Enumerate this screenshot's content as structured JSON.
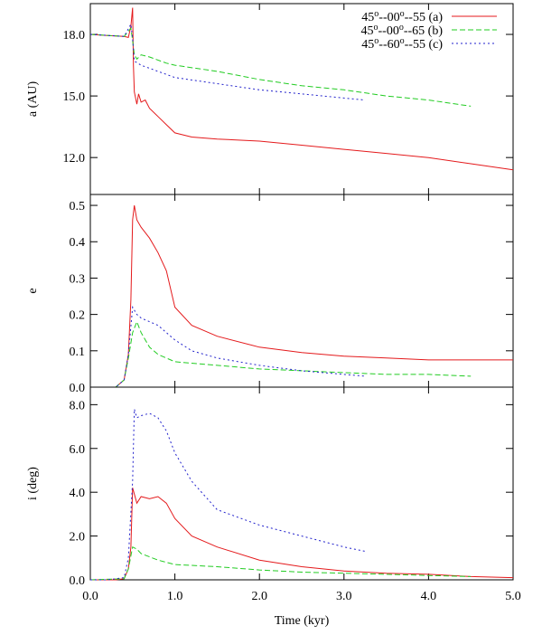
{
  "chart_data": {
    "type": "line",
    "xlabel": "Time (kyr)",
    "xlim": [
      0,
      5
    ],
    "xticks": [
      "0.0",
      "1.0",
      "2.0",
      "3.0",
      "4.0",
      "5.0"
    ],
    "legend_placement": "top-right",
    "series_styles": [
      {
        "key": "a",
        "name": "45°--00°--55 (a)",
        "color": "#e41a1c",
        "dash": "solid"
      },
      {
        "key": "b",
        "name": "45°--00°--65 (b)",
        "color": "#22cc22",
        "dash": "dashed"
      },
      {
        "key": "c",
        "name": "45°--60°--55 (c)",
        "color": "#2222cc",
        "dash": "dotted"
      }
    ],
    "legend": [
      {
        "pre": "45",
        "sup1": "o",
        "mid": "--00",
        "sup2": "o",
        "post": "--55 (a)"
      },
      {
        "pre": "45",
        "sup1": "o",
        "mid": "--00",
        "sup2": "o",
        "post": "--65 (b)"
      },
      {
        "pre": "45",
        "sup1": "o",
        "mid": "--60",
        "sup2": "o",
        "post": "--55 (c)"
      }
    ],
    "panels": [
      {
        "ylabel": "a (AU)",
        "ylim": [
          10.2,
          19.5
        ],
        "yticks": [
          12.0,
          15.0,
          18.0
        ],
        "ytick_labels": [
          "12.0",
          "15.0",
          "18.0"
        ],
        "series": {
          "a": [
            [
              0,
              18.0
            ],
            [
              0.2,
              17.95
            ],
            [
              0.4,
              17.9
            ],
            [
              0.45,
              17.85
            ],
            [
              0.48,
              18.4
            ],
            [
              0.5,
              19.3
            ],
            [
              0.51,
              16.5
            ],
            [
              0.52,
              15.2
            ],
            [
              0.55,
              14.6
            ],
            [
              0.57,
              15.1
            ],
            [
              0.6,
              14.7
            ],
            [
              0.65,
              14.8
            ],
            [
              0.7,
              14.4
            ],
            [
              0.8,
              14.0
            ],
            [
              0.9,
              13.6
            ],
            [
              1.0,
              13.2
            ],
            [
              1.2,
              13.0
            ],
            [
              1.5,
              12.9
            ],
            [
              2.0,
              12.8
            ],
            [
              2.5,
              12.6
            ],
            [
              3.0,
              12.4
            ],
            [
              3.5,
              12.2
            ],
            [
              4.0,
              12.0
            ],
            [
              4.5,
              11.7
            ],
            [
              5.0,
              11.4
            ]
          ],
          "b": [
            [
              0,
              18.0
            ],
            [
              0.4,
              17.9
            ],
            [
              0.48,
              18.3
            ],
            [
              0.5,
              17.7
            ],
            [
              0.52,
              17.0
            ],
            [
              0.55,
              16.8
            ],
            [
              0.6,
              17.0
            ],
            [
              0.7,
              16.9
            ],
            [
              0.9,
              16.6
            ],
            [
              1.0,
              16.5
            ],
            [
              1.5,
              16.2
            ],
            [
              2.0,
              15.8
            ],
            [
              2.5,
              15.5
            ],
            [
              3.0,
              15.3
            ],
            [
              3.5,
              15.0
            ],
            [
              4.0,
              14.8
            ],
            [
              4.5,
              14.5
            ]
          ],
          "c": [
            [
              0,
              18.0
            ],
            [
              0.4,
              17.9
            ],
            [
              0.48,
              18.5
            ],
            [
              0.5,
              17.8
            ],
            [
              0.52,
              16.7
            ],
            [
              0.6,
              16.5
            ],
            [
              0.8,
              16.2
            ],
            [
              1.0,
              15.9
            ],
            [
              1.5,
              15.6
            ],
            [
              2.0,
              15.3
            ],
            [
              2.5,
              15.1
            ],
            [
              3.0,
              14.9
            ],
            [
              3.25,
              14.8
            ]
          ]
        }
      },
      {
        "ylabel": "e",
        "ylim": [
          0,
          0.53
        ],
        "yticks": [
          0.0,
          0.1,
          0.2,
          0.3,
          0.4,
          0.5
        ],
        "ytick_labels": [
          "0.0",
          "0.1",
          "0.2",
          "0.3",
          "0.4",
          "0.5"
        ],
        "series": {
          "a": [
            [
              0,
              0.0
            ],
            [
              0.3,
              0.0
            ],
            [
              0.4,
              0.02
            ],
            [
              0.45,
              0.09
            ],
            [
              0.48,
              0.24
            ],
            [
              0.5,
              0.46
            ],
            [
              0.52,
              0.5
            ],
            [
              0.55,
              0.46
            ],
            [
              0.6,
              0.44
            ],
            [
              0.7,
              0.41
            ],
            [
              0.8,
              0.37
            ],
            [
              0.9,
              0.32
            ],
            [
              1.0,
              0.22
            ],
            [
              1.2,
              0.17
            ],
            [
              1.5,
              0.14
            ],
            [
              2.0,
              0.11
            ],
            [
              2.5,
              0.095
            ],
            [
              3.0,
              0.085
            ],
            [
              3.5,
              0.08
            ],
            [
              4.0,
              0.075
            ],
            [
              5.0,
              0.075
            ]
          ],
          "b": [
            [
              0,
              0.0
            ],
            [
              0.3,
              0.0
            ],
            [
              0.4,
              0.02
            ],
            [
              0.45,
              0.08
            ],
            [
              0.5,
              0.15
            ],
            [
              0.55,
              0.18
            ],
            [
              0.6,
              0.15
            ],
            [
              0.7,
              0.11
            ],
            [
              0.8,
              0.09
            ],
            [
              1.0,
              0.07
            ],
            [
              1.5,
              0.06
            ],
            [
              2.0,
              0.05
            ],
            [
              2.5,
              0.045
            ],
            [
              3.0,
              0.04
            ],
            [
              3.5,
              0.035
            ],
            [
              4.0,
              0.035
            ],
            [
              4.5,
              0.03
            ]
          ],
          "c": [
            [
              0,
              0.0
            ],
            [
              0.3,
              0.0
            ],
            [
              0.4,
              0.02
            ],
            [
              0.45,
              0.09
            ],
            [
              0.5,
              0.22
            ],
            [
              0.55,
              0.2
            ],
            [
              0.6,
              0.19
            ],
            [
              0.8,
              0.17
            ],
            [
              1.0,
              0.13
            ],
            [
              1.2,
              0.1
            ],
            [
              1.5,
              0.08
            ],
            [
              2.0,
              0.06
            ],
            [
              2.5,
              0.045
            ],
            [
              3.0,
              0.035
            ],
            [
              3.25,
              0.03
            ]
          ]
        }
      },
      {
        "ylabel": "i (deg)",
        "ylim": [
          0,
          8.8
        ],
        "yticks": [
          0.0,
          2.0,
          4.0,
          6.0,
          8.0
        ],
        "ytick_labels": [
          "0.0",
          "2.0",
          "4.0",
          "6.0",
          "8.0"
        ],
        "series": {
          "a": [
            [
              0,
              0.0
            ],
            [
              0.3,
              0.0
            ],
            [
              0.4,
              0.05
            ],
            [
              0.45,
              0.5
            ],
            [
              0.48,
              1.5
            ],
            [
              0.5,
              4.2
            ],
            [
              0.55,
              3.5
            ],
            [
              0.6,
              3.8
            ],
            [
              0.7,
              3.7
            ],
            [
              0.8,
              3.8
            ],
            [
              0.9,
              3.5
            ],
            [
              1.0,
              2.8
            ],
            [
              1.2,
              2.0
            ],
            [
              1.5,
              1.5
            ],
            [
              2.0,
              0.9
            ],
            [
              2.5,
              0.6
            ],
            [
              3.0,
              0.4
            ],
            [
              3.5,
              0.3
            ],
            [
              4.0,
              0.25
            ],
            [
              4.5,
              0.15
            ],
            [
              5.0,
              0.1
            ]
          ],
          "b": [
            [
              0,
              0.0
            ],
            [
              0.4,
              0.05
            ],
            [
              0.45,
              0.5
            ],
            [
              0.5,
              1.5
            ],
            [
              0.55,
              1.4
            ],
            [
              0.6,
              1.2
            ],
            [
              0.8,
              0.9
            ],
            [
              1.0,
              0.7
            ],
            [
              1.5,
              0.6
            ],
            [
              2.0,
              0.45
            ],
            [
              2.5,
              0.35
            ],
            [
              3.0,
              0.3
            ],
            [
              3.5,
              0.25
            ],
            [
              4.0,
              0.2
            ],
            [
              4.5,
              0.15
            ]
          ],
          "c": [
            [
              0,
              0.0
            ],
            [
              0.2,
              0.0
            ],
            [
              0.4,
              0.1
            ],
            [
              0.45,
              1.0
            ],
            [
              0.5,
              4.5
            ],
            [
              0.52,
              7.8
            ],
            [
              0.55,
              7.4
            ],
            [
              0.6,
              7.5
            ],
            [
              0.7,
              7.6
            ],
            [
              0.8,
              7.4
            ],
            [
              0.9,
              6.8
            ],
            [
              1.0,
              5.8
            ],
            [
              1.2,
              4.5
            ],
            [
              1.5,
              3.2
            ],
            [
              2.0,
              2.5
            ],
            [
              2.5,
              2.0
            ],
            [
              3.0,
              1.5
            ],
            [
              3.25,
              1.3
            ]
          ]
        }
      }
    ]
  }
}
